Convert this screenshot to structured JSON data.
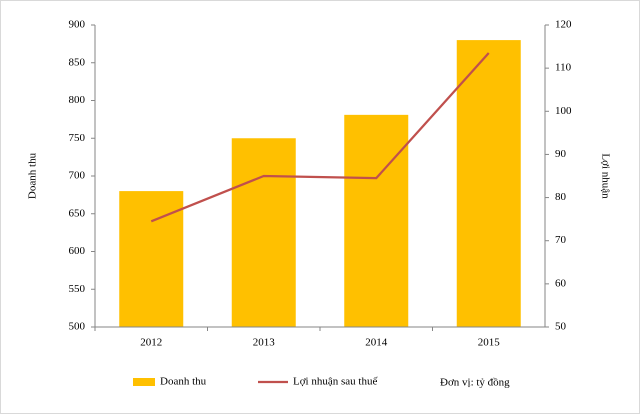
{
  "chart_data": {
    "type": "bar",
    "categories": [
      "2012",
      "2013",
      "2014",
      "2015"
    ],
    "series": [
      {
        "name": "Doanh thu",
        "color": "#ffc000",
        "values": [
          680,
          750,
          781,
          880
        ]
      },
      {
        "name": "Lợi nhuận sau thuế",
        "type": "line",
        "axis": "y2",
        "color": "#c0504d",
        "values": [
          74.5,
          85,
          84.5,
          113.5
        ]
      }
    ],
    "ylabel": "Doanh thu",
    "y2label": "Lợi nhuận",
    "ylim": [
      500,
      900
    ],
    "yticks": [
      500,
      550,
      600,
      650,
      700,
      750,
      800,
      850,
      900
    ],
    "y2lim": [
      50,
      120
    ],
    "y2ticks": [
      50,
      60,
      70,
      80,
      90,
      100,
      110,
      120
    ],
    "annotation": "Đơn vị: tỷ đồng"
  }
}
